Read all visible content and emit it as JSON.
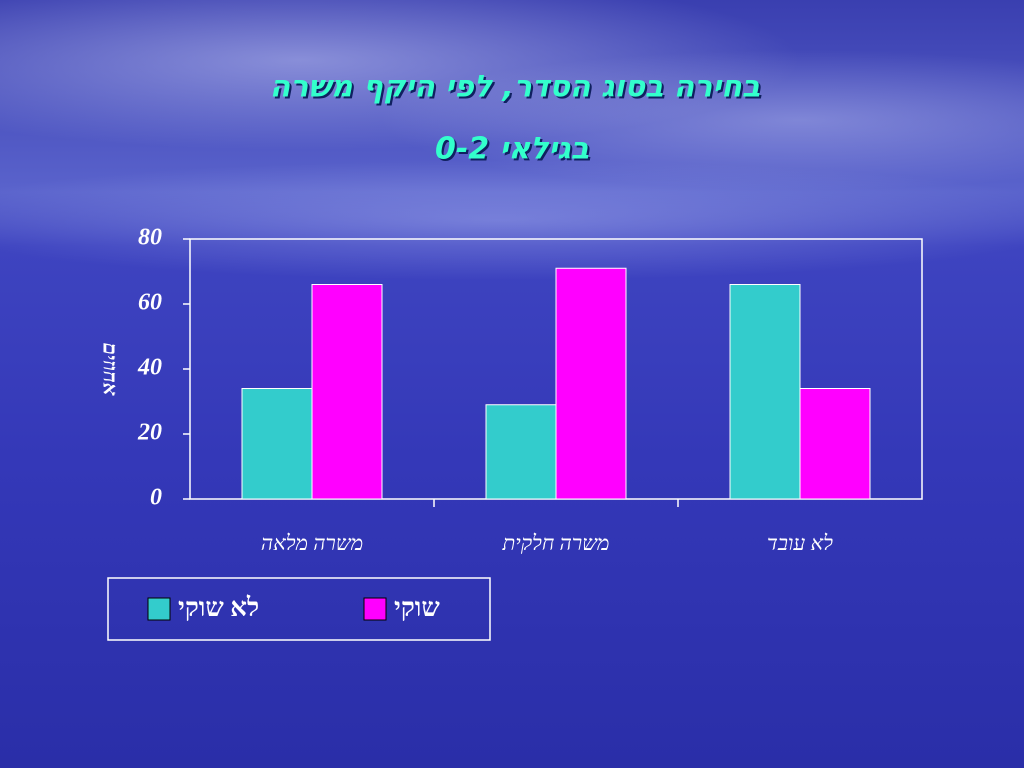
{
  "chart_data": {
    "type": "bar",
    "title": "בחירה בסוג הסדר, לפי היקף משרה",
    "subtitle": "בגילאי 0-2",
    "y_label": "אחוזים",
    "categories": [
      "משרה מלאה",
      "משרה חלקית",
      "לא עובד"
    ],
    "series": [
      {
        "name": "לא שוקי",
        "color": "#33cccc",
        "values": [
          34,
          29,
          66
        ]
      },
      {
        "name": "שוקי",
        "color": "#ff00ff",
        "values": [
          66,
          71,
          34
        ]
      }
    ],
    "ylim": [
      0,
      80
    ],
    "yticks": [
      0,
      20,
      40,
      60,
      80
    ],
    "grid": false,
    "legend": "bottom-left"
  }
}
